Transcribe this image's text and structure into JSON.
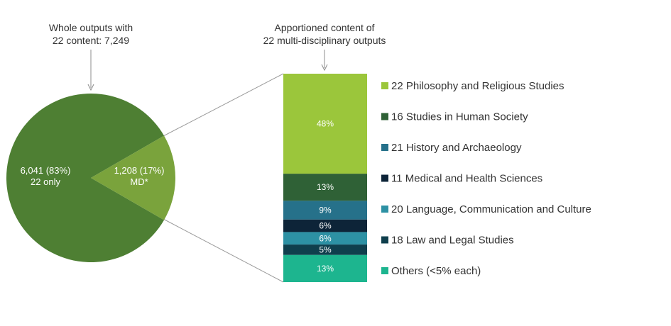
{
  "chart_data": [
    {
      "type": "pie",
      "title": "Whole outputs with 22 content: 7,249",
      "title_lines": [
        "Whole outputs with",
        "22 content: 7,249"
      ],
      "slices": [
        {
          "label_lines": [
            "6,041 (83%)",
            "22 only"
          ],
          "value": 6041,
          "color": "#4e7f33"
        },
        {
          "label_lines": [
            "1,208 (17%)",
            "MD*"
          ],
          "value": 1208,
          "color": "#7aa33c"
        }
      ]
    },
    {
      "type": "bar",
      "stacked": true,
      "title": "Apportioned content of 22 multi-disciplinary outputs",
      "title_lines": [
        "Apportioned content of",
        "22 multi-disciplinary outputs"
      ],
      "legend_position": "right",
      "segments": [
        {
          "name": "22 Philosophy and Religious Studies",
          "value": 48,
          "label": "48%",
          "color": "#9bc63b"
        },
        {
          "name": "16 Studies in Human Society",
          "value": 13,
          "label": "13%",
          "color": "#2f6136"
        },
        {
          "name": "21 History and Archaeology",
          "value": 9,
          "label": "9%",
          "color": "#26718a"
        },
        {
          "name": "11 Medical and Health Sciences",
          "value": 6,
          "label": "6%",
          "color": "#0d2438"
        },
        {
          "name": "20 Language, Communication and Culture",
          "value": 6,
          "label": "6%",
          "color": "#2d91a4"
        },
        {
          "name": "18 Law and Legal Studies",
          "value": 5,
          "label": "5%",
          "color": "#0f3f4d"
        },
        {
          "name": "Others (<5% each)",
          "value": 13,
          "label": "13%",
          "color": "#1db58f"
        }
      ]
    }
  ]
}
